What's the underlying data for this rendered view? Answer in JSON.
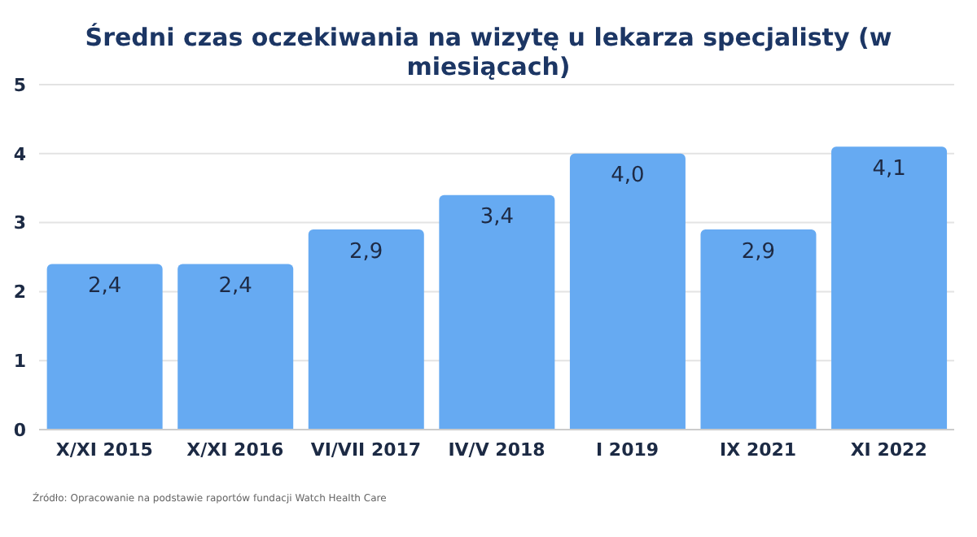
{
  "chart_data": {
    "type": "bar",
    "title": "Średni czas oczekiwania na wizytę u lekarza specjalisty (w miesiącach)",
    "categories": [
      "X/XI 2015",
      "X/XI 2016",
      "VI/VII 2017",
      "IV/V 2018",
      "I 2019",
      "IX 2021",
      "XI 2022"
    ],
    "values": [
      2.4,
      2.4,
      2.9,
      3.4,
      4.0,
      2.9,
      4.1
    ],
    "value_labels": [
      "2,4",
      "2,4",
      "2,9",
      "3,4",
      "4,0",
      "2,9",
      "4,1"
    ],
    "color": "#66aaf2",
    "ylim": [
      0,
      5
    ],
    "yticks": [
      0,
      1,
      2,
      3,
      4,
      5
    ],
    "grid": "y",
    "annotations": [
      "Źródło: Opracowanie na podstawie raportów fundacji Watch Health Care"
    ]
  }
}
